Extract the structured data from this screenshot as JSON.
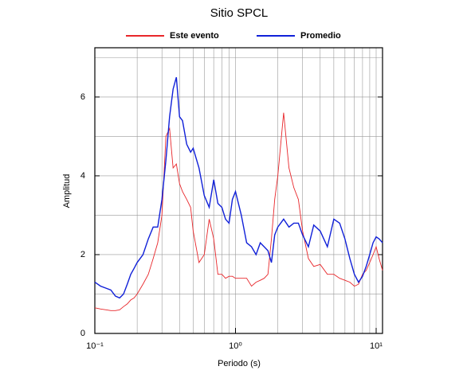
{
  "chart_data": {
    "type": "line",
    "title": "Sitio SPCL",
    "xlabel": "Periodo (s)",
    "ylabel": "Amplitud",
    "x": [
      0.1,
      0.11,
      0.12,
      0.13,
      0.14,
      0.15,
      0.16,
      0.17,
      0.18,
      0.19,
      0.2,
      0.22,
      0.24,
      0.26,
      0.28,
      0.3,
      0.32,
      0.34,
      0.36,
      0.38,
      0.4,
      0.42,
      0.45,
      0.48,
      0.5,
      0.55,
      0.6,
      0.65,
      0.7,
      0.75,
      0.8,
      0.85,
      0.9,
      0.95,
      1.0,
      1.1,
      1.2,
      1.3,
      1.4,
      1.5,
      1.6,
      1.7,
      1.8,
      1.9,
      2.0,
      2.2,
      2.4,
      2.6,
      2.8,
      3.0,
      3.3,
      3.6,
      4.0,
      4.5,
      5.0,
      5.5,
      6.0,
      6.5,
      7.0,
      7.5,
      8.0,
      8.5,
      9.0,
      9.5,
      10,
      10.5,
      11.1
    ],
    "series": [
      {
        "name": "Este evento",
        "color": "#e8262a",
        "values": [
          0.65,
          0.62,
          0.6,
          0.58,
          0.58,
          0.6,
          0.68,
          0.75,
          0.85,
          0.9,
          1.0,
          1.25,
          1.5,
          1.9,
          2.3,
          3.0,
          5.0,
          5.2,
          4.2,
          4.3,
          3.8,
          3.6,
          3.4,
          3.2,
          2.6,
          1.8,
          2.0,
          2.9,
          2.4,
          1.5,
          1.5,
          1.4,
          1.45,
          1.45,
          1.4,
          1.4,
          1.4,
          1.2,
          1.3,
          1.35,
          1.4,
          1.5,
          2.4,
          3.4,
          4.0,
          5.6,
          4.2,
          3.7,
          3.4,
          2.6,
          1.9,
          1.7,
          1.75,
          1.5,
          1.5,
          1.4,
          1.35,
          1.3,
          1.2,
          1.25,
          1.5,
          1.6,
          1.8,
          2.0,
          2.2,
          1.9,
          1.6
        ]
      },
      {
        "name": "Promedio",
        "color": "#1020d8",
        "values": [
          1.3,
          1.2,
          1.15,
          1.1,
          0.95,
          0.9,
          1.0,
          1.25,
          1.5,
          1.65,
          1.8,
          2.0,
          2.4,
          2.7,
          2.7,
          3.4,
          4.4,
          5.5,
          6.2,
          6.5,
          5.5,
          5.4,
          4.8,
          4.6,
          4.7,
          4.2,
          3.5,
          3.2,
          3.9,
          3.3,
          3.2,
          2.9,
          2.8,
          3.4,
          3.6,
          3.0,
          2.3,
          2.2,
          2.0,
          2.3,
          2.2,
          2.1,
          1.8,
          2.5,
          2.7,
          2.9,
          2.7,
          2.8,
          2.8,
          2.5,
          2.2,
          2.75,
          2.6,
          2.2,
          2.9,
          2.8,
          2.4,
          1.9,
          1.5,
          1.3,
          1.45,
          1.7,
          2.0,
          2.3,
          2.45,
          2.4,
          2.3
        ]
      }
    ],
    "xscale": "log",
    "xlim": [
      0.1,
      11.1
    ],
    "xticks": [
      {
        "value": 0.1,
        "label": "10⁻¹"
      },
      {
        "value": 1,
        "label": "10⁰"
      },
      {
        "value": 10,
        "label": "10¹"
      }
    ],
    "xgrid": [
      0.2,
      0.3,
      0.4,
      0.5,
      0.6,
      0.7,
      0.8,
      0.9,
      1,
      2,
      3,
      4,
      5,
      6,
      7,
      8,
      9,
      10
    ],
    "ylim": [
      0,
      7.25
    ],
    "yticks": [
      0,
      2,
      4,
      6
    ],
    "ygrid": [
      1,
      2,
      3,
      4,
      5,
      6,
      7
    ],
    "legend": "top"
  }
}
